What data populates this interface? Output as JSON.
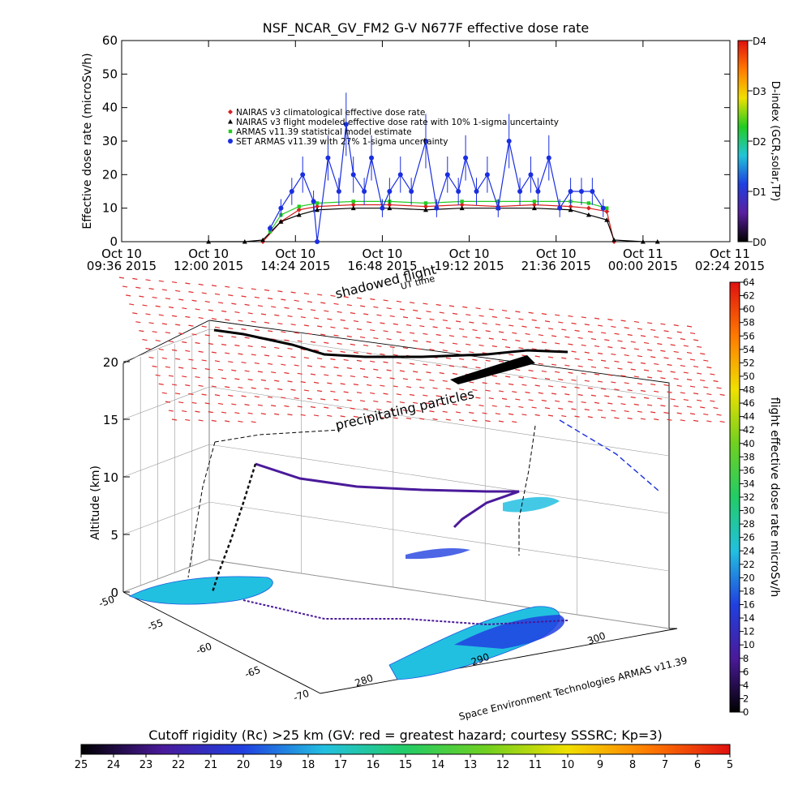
{
  "chart_data": [
    {
      "type": "scatter",
      "title": "NSF_NCAR_GV_FM2 G-V    N677F  effective dose rate",
      "xlabel": "UT time",
      "ylabel": "Effective dose rate (microSv/h)",
      "ylim": [
        0,
        60
      ],
      "yticks": [
        "0",
        "10",
        "20",
        "30",
        "40",
        "50",
        "60"
      ],
      "xticks": [
        {
          "date": "Oct 10",
          "time": "09:36 2015"
        },
        {
          "date": "Oct 10",
          "time": "12:00 2015"
        },
        {
          "date": "Oct 10",
          "time": "14:24 2015"
        },
        {
          "date": "Oct 10",
          "time": "16:48 2015"
        },
        {
          "date": "Oct 10",
          "time": "19:12 2015"
        },
        {
          "date": "Oct 10",
          "time": "21:36 2015"
        },
        {
          "date": "Oct 11",
          "time": "00:00 2015"
        },
        {
          "date": "Oct 11",
          "time": "02:24 2015"
        }
      ],
      "legend_position": "inside, upper-left",
      "series": [
        {
          "name": "NAIRAS v3 climatological effective dose rate",
          "color": "#d62020",
          "marker": "diamond",
          "hours_ut": [
            13.5,
            14.0,
            14.5,
            15.0,
            16.0,
            17.0,
            18.0,
            19.0,
            20.0,
            21.0,
            22.0,
            22.5,
            23.0,
            23.2
          ],
          "values": [
            0,
            6,
            9.5,
            10.5,
            11,
            11,
            10.5,
            11,
            10.5,
            11,
            10.5,
            10,
            9,
            0
          ]
        },
        {
          "name": "NAIRAS v3 flight modeled effective dose rate with 10% 1-sigma uncertainty",
          "color": "#000000",
          "marker": "triangle",
          "hours_ut": [
            12.0,
            13.0,
            13.5,
            14.0,
            14.5,
            15.0,
            16.0,
            17.0,
            18.0,
            19.0,
            20.0,
            21.0,
            22.0,
            22.5,
            23.0,
            23.2,
            24.0,
            24.4
          ],
          "values": [
            0,
            0,
            0.5,
            6,
            8,
            9.5,
            10,
            10,
            9.5,
            10,
            10,
            10,
            9.5,
            8,
            6.5,
            0.5,
            0,
            0
          ]
        },
        {
          "name": "ARMAS v11.39 statistical model estimate",
          "color": "#22cc22",
          "marker": "square",
          "hours_ut": [
            13.7,
            14.0,
            14.5,
            15.0,
            16.0,
            17.0,
            18.0,
            19.0,
            20.0,
            21.0,
            22.0,
            22.5,
            23.0
          ],
          "values": [
            3,
            8,
            10.5,
            11.5,
            12,
            12,
            11.5,
            12,
            12,
            12,
            12,
            11.5,
            10
          ]
        },
        {
          "name": "SET ARMAS v11.39 with 27% 1-sigma uncertainty",
          "color": "#1a2ee0",
          "marker": "circle",
          "hours_ut": [
            13.7,
            14.0,
            14.3,
            14.6,
            14.9,
            15.0,
            15.3,
            15.6,
            15.8,
            16.0,
            16.3,
            16.5,
            16.8,
            17.0,
            17.3,
            17.6,
            18.0,
            18.3,
            18.6,
            18.9,
            19.1,
            19.4,
            19.7,
            20.0,
            20.3,
            20.6,
            20.9,
            21.1,
            21.4,
            21.7,
            22.0,
            22.3,
            22.6,
            22.9
          ],
          "values": [
            4,
            10,
            15,
            20,
            12,
            0,
            25,
            15,
            35,
            20,
            15,
            25,
            10,
            15,
            20,
            15,
            30,
            10,
            20,
            15,
            25,
            15,
            20,
            10,
            30,
            15,
            20,
            15,
            25,
            10,
            15,
            15,
            15,
            10
          ]
        }
      ],
      "right_axis": {
        "label": "D-index (GCR,solar,TP)",
        "ticks": [
          "D0",
          "D1",
          "D2",
          "D3",
          "D4"
        ],
        "colors": [
          "#000000",
          "#5a1fa0",
          "#1f3fe0",
          "#22c4d8",
          "#22cc22",
          "#f0e000",
          "#ff7a00",
          "#e01010"
        ]
      }
    },
    {
      "type": "scatter",
      "subtype": "3d-flight-track",
      "zlabel": "Altitude (km)",
      "zticks": [
        "0",
        "5",
        "10",
        "15",
        "20"
      ],
      "lat_ticks": [
        "-50",
        "-55",
        "-60",
        "-65",
        "-70"
      ],
      "lon_ticks": [
        "280",
        "290",
        "300"
      ],
      "annotations": [
        "shadowed flight",
        "UT time",
        "precipitating particles",
        "Space Environment Technologies ARMAS v11.39"
      ],
      "track": {
        "lon": [
          283,
          285,
          288,
          291,
          294,
          297,
          300,
          303
        ],
        "lat": [
          -52,
          -55,
          -58,
          -60,
          -62,
          -64,
          -66,
          -68
        ],
        "alt_km": [
          0.5,
          4,
          12.5,
          11,
          10.5,
          10,
          9.5,
          9
        ]
      },
      "colorbar": {
        "label": "flight effective dose rate microSv/h",
        "ticks": [
          "0",
          "2",
          "4",
          "6",
          "8",
          "10",
          "12",
          "14",
          "16",
          "18",
          "20",
          "22",
          "24",
          "26",
          "28",
          "30",
          "32",
          "34",
          "36",
          "38",
          "40",
          "42",
          "44",
          "46",
          "48",
          "50",
          "52",
          "54",
          "56",
          "58",
          "60",
          "62",
          "64"
        ],
        "colors": [
          "#000000",
          "#4a1a9a",
          "#2040e0",
          "#22c0e0",
          "#22cc66",
          "#70d020",
          "#f0e000",
          "#ff7a00",
          "#e01010"
        ]
      }
    },
    {
      "type": "heatmap",
      "role": "cutoff-rigidity-colorbar",
      "title": "Cutoff rigidity (Rc) >25 km (GV: red = greatest hazard; courtesy SSSRC; Kp=3)",
      "ticks": [
        "25",
        "24",
        "23",
        "22",
        "21",
        "20",
        "19",
        "18",
        "17",
        "16",
        "15",
        "14",
        "13",
        "12",
        "11",
        "10",
        "9",
        "8",
        "7",
        "6",
        "5"
      ],
      "colors": [
        "#000000",
        "#4a1a9a",
        "#2040e0",
        "#22c0e0",
        "#22cc66",
        "#70d020",
        "#f0e000",
        "#ff7a00",
        "#e01010"
      ]
    }
  ]
}
